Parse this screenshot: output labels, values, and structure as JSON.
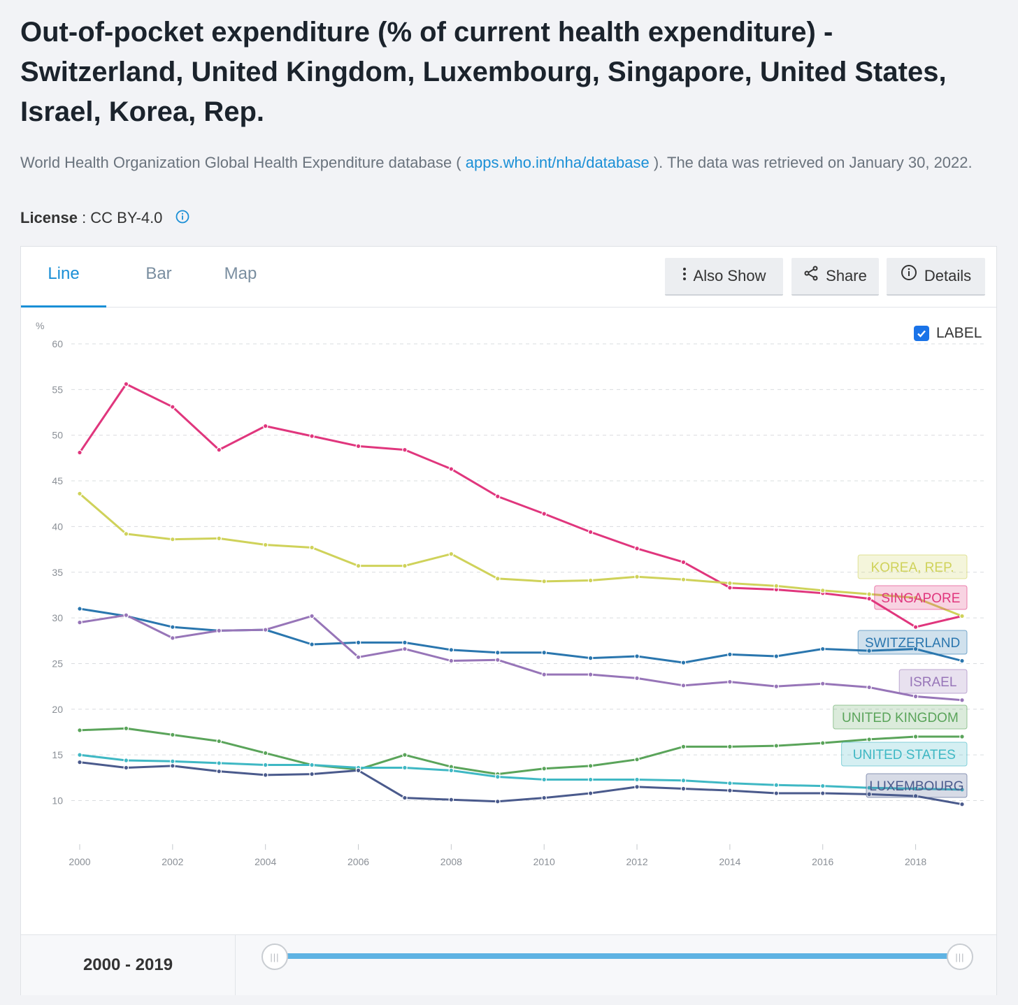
{
  "title": "Out-of-pocket expenditure (% of current health expenditure) - Switzerland, United Kingdom, Luxembourg, Singapore, United States, Israel, Korea, Rep.",
  "source": {
    "prefix": "World Health Organization Global Health Expenditure database (",
    "link": "apps.who.int/nha/database",
    "suffix": "). The data was retrieved on January 30, 2022."
  },
  "license": {
    "label": "License",
    "value": ": CC BY-4.0"
  },
  "tabs": [
    {
      "label": "Line",
      "active": true
    },
    {
      "label": "Bar",
      "active": false
    },
    {
      "label": "Map",
      "active": false
    }
  ],
  "toolbar": {
    "also_show": "Also Show",
    "share": "Share",
    "details": "Details"
  },
  "label_toggle": {
    "text": "LABEL",
    "checked": true
  },
  "range": {
    "text": "2000 - 2019",
    "start": 2000,
    "end": 2019
  },
  "chart_data": {
    "type": "line",
    "ylabel": "%",
    "ylim": [
      5,
      60
    ],
    "yticks": [
      10,
      15,
      20,
      25,
      30,
      35,
      40,
      45,
      50,
      55,
      60
    ],
    "xlim": [
      2000,
      2019
    ],
    "xticks": [
      2000,
      2002,
      2004,
      2006,
      2008,
      2010,
      2012,
      2014,
      2016,
      2018
    ],
    "grid": true,
    "x": [
      2000,
      2001,
      2002,
      2003,
      2004,
      2005,
      2006,
      2007,
      2008,
      2009,
      2010,
      2011,
      2012,
      2013,
      2014,
      2015,
      2016,
      2017,
      2018,
      2019
    ],
    "series": [
      {
        "name": "SINGAPORE",
        "color": "#e0367d",
        "values": [
          48.1,
          55.6,
          53.1,
          48.4,
          51.0,
          49.9,
          48.8,
          48.4,
          46.3,
          43.3,
          41.4,
          39.4,
          37.6,
          36.1,
          33.3,
          33.1,
          32.7,
          32.1,
          29.0,
          30.2
        ]
      },
      {
        "name": "KOREA, REP.",
        "color": "#cfd25a",
        "values": [
          43.6,
          39.2,
          38.6,
          38.7,
          38.0,
          37.7,
          35.7,
          35.7,
          37.0,
          34.3,
          34.0,
          34.1,
          34.5,
          34.2,
          33.8,
          33.5,
          33.0,
          32.6,
          32.2,
          30.2
        ]
      },
      {
        "name": "SWITZERLAND",
        "color": "#2a76ae",
        "values": [
          31.0,
          30.2,
          29.0,
          28.6,
          28.7,
          27.1,
          27.3,
          27.3,
          26.5,
          26.2,
          26.2,
          25.6,
          25.8,
          25.1,
          26.0,
          25.8,
          26.6,
          26.4,
          26.6,
          25.3
        ]
      },
      {
        "name": "ISRAEL",
        "color": "#9775b8",
        "values": [
          29.5,
          30.3,
          27.8,
          28.6,
          28.7,
          30.2,
          25.7,
          26.6,
          25.3,
          25.4,
          23.8,
          23.8,
          23.4,
          22.6,
          23.0,
          22.5,
          22.8,
          22.4,
          21.4,
          21.0
        ]
      },
      {
        "name": "UNITED KINGDOM",
        "color": "#5aa45a",
        "values": [
          17.7,
          17.9,
          17.2,
          16.5,
          15.2,
          13.9,
          13.4,
          15.0,
          13.7,
          12.9,
          13.5,
          13.8,
          14.5,
          15.9,
          15.9,
          16.0,
          16.3,
          16.7,
          17.0,
          17.0
        ]
      },
      {
        "name": "UNITED STATES",
        "color": "#3fb8c4",
        "values": [
          15.0,
          14.4,
          14.3,
          14.1,
          13.9,
          13.9,
          13.6,
          13.6,
          13.3,
          12.6,
          12.3,
          12.3,
          12.3,
          12.2,
          11.9,
          11.7,
          11.6,
          11.4,
          11.3,
          11.2
        ]
      },
      {
        "name": "LUXEMBOURG",
        "color": "#4a5a8c",
        "values": [
          14.2,
          13.6,
          13.8,
          13.2,
          12.8,
          12.9,
          13.3,
          10.3,
          10.1,
          9.9,
          10.3,
          10.8,
          11.5,
          11.3,
          11.1,
          10.8,
          10.8,
          10.7,
          10.5,
          9.6
        ]
      }
    ]
  }
}
